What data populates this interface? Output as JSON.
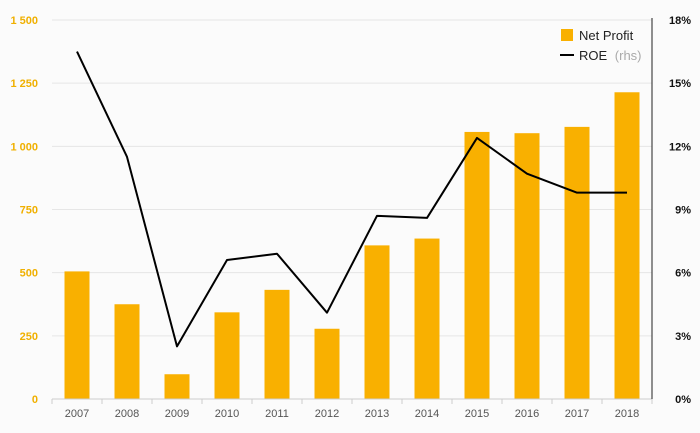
{
  "chart_data": {
    "type": "bar",
    "categories": [
      "2007",
      "2008",
      "2009",
      "2010",
      "2011",
      "2012",
      "2013",
      "2014",
      "2015",
      "2016",
      "2017",
      "2018"
    ],
    "series": [
      {
        "name": "Net Profit",
        "type": "bar",
        "axis": "left",
        "values": [
          505,
          375,
          98,
          343,
          432,
          278,
          608,
          635,
          1057,
          1052,
          1077,
          1214
        ]
      },
      {
        "name": "ROE",
        "name_suffix": "(rhs)",
        "type": "line",
        "axis": "right",
        "values": [
          16.5,
          11.5,
          2.5,
          6.6,
          6.9,
          4.1,
          8.7,
          8.6,
          12.4,
          10.7,
          9.8,
          9.8
        ]
      }
    ],
    "y_left": {
      "ylim": [
        0,
        1500
      ],
      "ticks": [
        0,
        250,
        500,
        750,
        1000,
        1250,
        1500
      ],
      "tick_labels": [
        "0",
        "250",
        "500",
        "750",
        "1 000",
        "1 250",
        "1 500"
      ]
    },
    "y_right": {
      "ylim": [
        0,
        18
      ],
      "ticks": [
        0,
        3,
        6,
        9,
        12,
        15,
        18
      ],
      "tick_labels": [
        "0%",
        "3%",
        "6%",
        "9%",
        "12%",
        "15%",
        "18%"
      ]
    },
    "grid": true,
    "legend_position": "top-right",
    "title": "",
    "xlabel": "",
    "ylabel": ""
  },
  "colors": {
    "bar": "#f9b000",
    "line": "#000000",
    "left_ticks": "#f0b000",
    "right_ticks": "#111111",
    "grid": "#e6e6e6"
  }
}
